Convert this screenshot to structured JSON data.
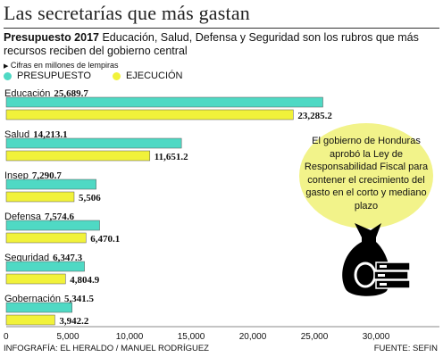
{
  "header": {
    "title": "Las secretarías que más gastan",
    "subtitle_bold": "Presupuesto 2017",
    "subtitle_text": " Educación, Salud, Defensa y Seguridad son los rubros que más recursos reciben del gobierno central",
    "units_note": "Cifras en millones de lempiras"
  },
  "legend": {
    "presupuesto": "PRESUPUESTO",
    "ejecucion": "EJECUCIÓN"
  },
  "callout": {
    "text": "El gobierno de Honduras aprobó la Ley de Responsabilidad Fiscal para contener el crecimiento del gasto en el corto y mediano plazo",
    "icon": "money-bag-icon"
  },
  "footer": {
    "credit": "INFOGRAFÍA: EL HERALDO / MANUEL RODRÍGUEZ",
    "source": "FUENTE: SEFIN"
  },
  "colors": {
    "presupuesto": "#4fd9c4",
    "ejecucion": "#f1f23a",
    "bar_outline": "#555555",
    "callout": "#f2f38a"
  },
  "chart_data": {
    "type": "bar",
    "orientation": "horizontal",
    "categories": [
      "Educación",
      "Salud",
      "Insep",
      "Defensa",
      "Seguridad",
      "Gobernación"
    ],
    "series": [
      {
        "name": "PRESUPUESTO",
        "values": [
          25689.7,
          14213.1,
          7290.7,
          7574.6,
          6347.3,
          5341.5
        ]
      },
      {
        "name": "EJECUCIÓN",
        "values": [
          23285.2,
          11651.2,
          5506,
          6470.1,
          4804.9,
          3942.2
        ]
      }
    ],
    "presupuesto_labels": [
      "25,689.7",
      "14,213.1",
      "7,290.7",
      "7,574.6",
      "6,347.3",
      "5,341.5"
    ],
    "ejecucion_labels": [
      "23,285.2",
      "11,651.2",
      "5,506",
      "6,470.1",
      "4,804.9",
      "3,942.2"
    ],
    "xlim": [
      0,
      35000
    ],
    "xticks": [
      0,
      5000,
      10000,
      15000,
      20000,
      25000,
      30000
    ],
    "xtick_labels": [
      "0",
      "5,000",
      "10,000",
      "15,000",
      "20,000",
      "25,000",
      "30,000"
    ],
    "grid": false
  }
}
